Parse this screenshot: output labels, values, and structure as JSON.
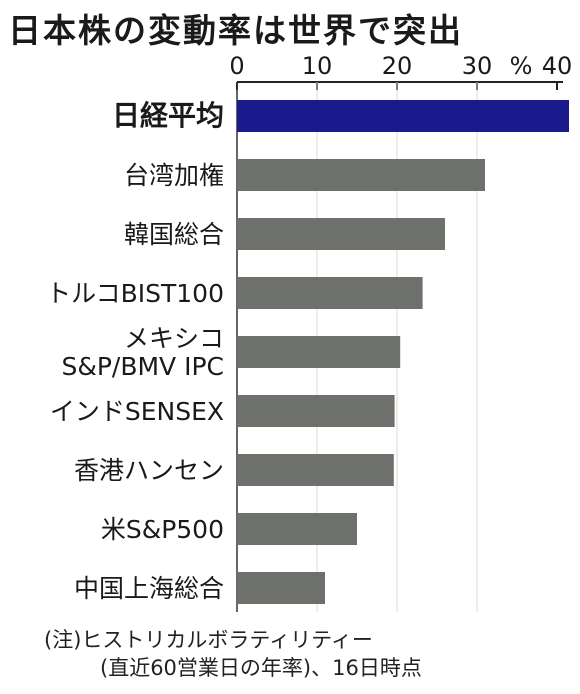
{
  "title": "日本株の変動率は世界で突出",
  "notes": [
    "(注)ヒストリカルボラティリティー",
    "(直近60営業日の年率)、16日時点"
  ],
  "chart_data": {
    "type": "bar",
    "orientation": "horizontal",
    "title": "日本株の変動率は世界で突出",
    "unit": "%",
    "xlim": [
      0,
      40
    ],
    "ticks": [
      "0",
      "10",
      "20",
      "30",
      "40"
    ],
    "categories": [
      [
        "日経平均"
      ],
      [
        "台湾加権"
      ],
      [
        "韓国総合"
      ],
      [
        "トルコBIST100"
      ],
      [
        "メキシコ",
        "S&P/BMV IPC"
      ],
      [
        "インドSENSEX"
      ],
      [
        "香港ハンセン"
      ],
      [
        "米S&P500"
      ],
      [
        "中国上海総合"
      ]
    ],
    "values": [
      41.5,
      31,
      26,
      23.2,
      20.4,
      19.7,
      19.6,
      15,
      11
    ],
    "colors": {
      "highlight": "#1a1a8c",
      "bar": "#6e706c"
    },
    "highlight_index": 0
  }
}
